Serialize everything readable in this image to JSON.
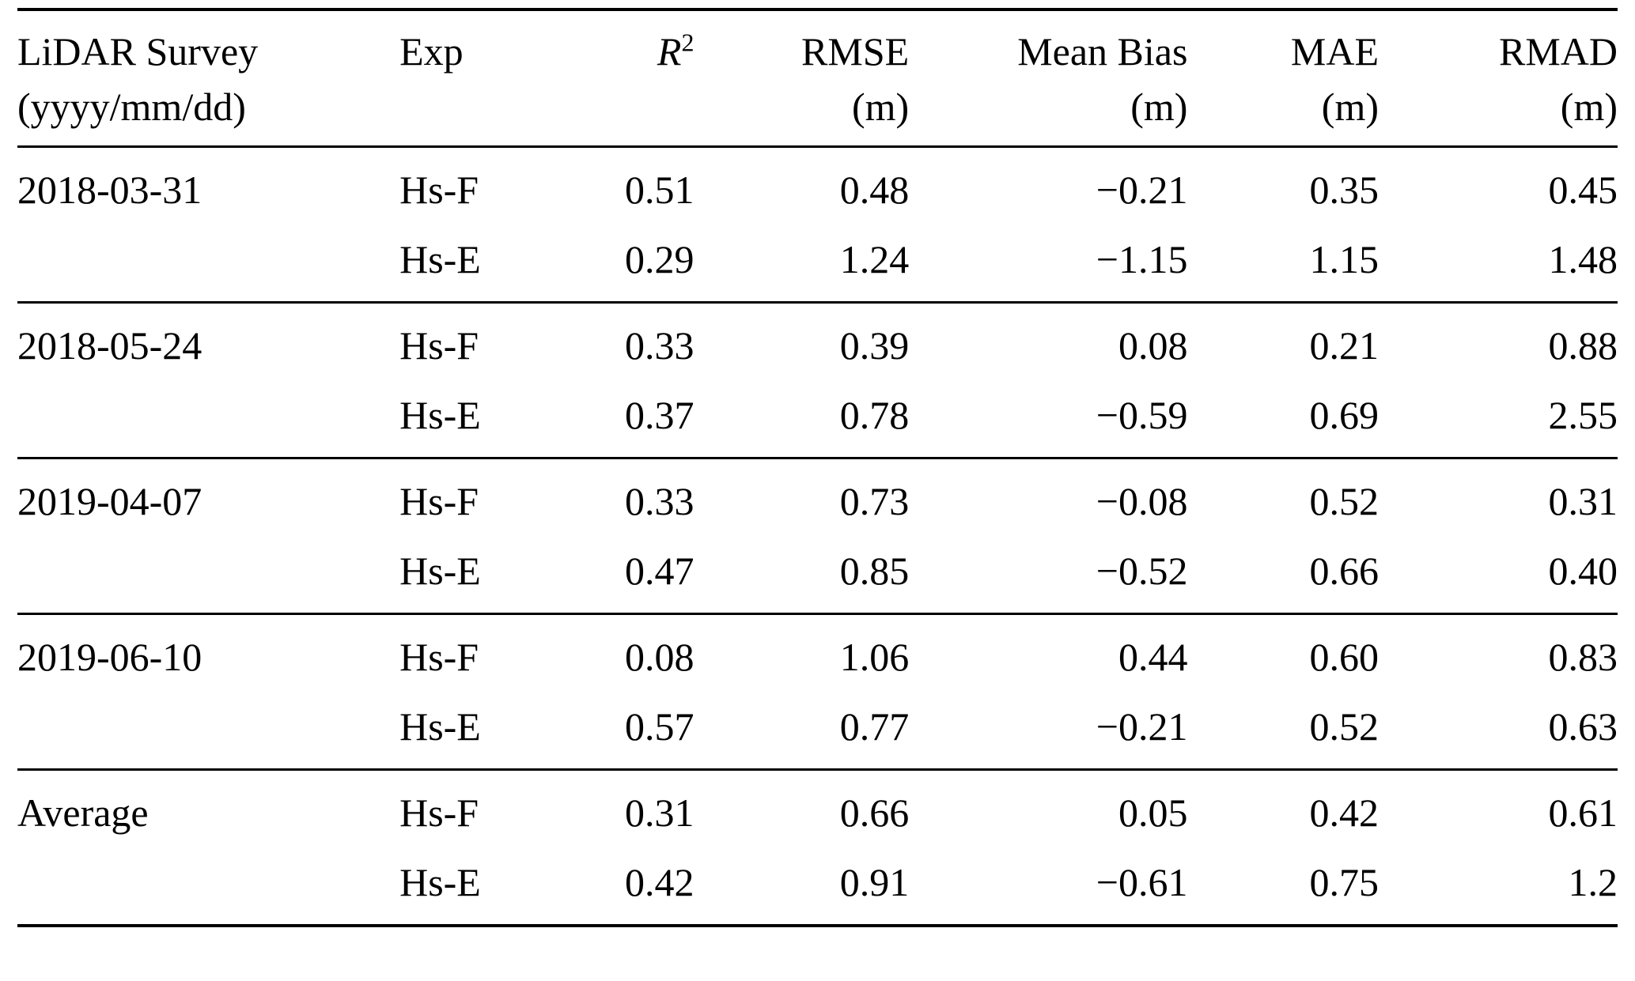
{
  "colors": {
    "background": "#ffffff",
    "text": "#000000",
    "rule": "#000000"
  },
  "table": {
    "headers": {
      "survey": {
        "line1": "LiDAR Survey",
        "line2": "(yyyy/mm/dd)"
      },
      "exp": "Exp",
      "r2": {
        "base": "R",
        "sup": "2"
      },
      "rmse": {
        "line1": "RMSE",
        "line2": "(m)"
      },
      "mean_bias": {
        "line1": "Mean Bias",
        "line2": "(m)"
      },
      "mae": {
        "line1": "MAE",
        "line2": "(m)"
      },
      "rmad": {
        "line1": "RMAD",
        "line2": "(m)"
      }
    },
    "groups": [
      {
        "label": "2018-03-31",
        "rows": [
          {
            "exp": "Hs-F",
            "r2": "0.51",
            "rmse": "0.48",
            "mean_bias": "−0.21",
            "mae": "0.35",
            "rmad": "0.45"
          },
          {
            "exp": "Hs-E",
            "r2": "0.29",
            "rmse": "1.24",
            "mean_bias": "−1.15",
            "mae": "1.15",
            "rmad": "1.48"
          }
        ]
      },
      {
        "label": "2018-05-24",
        "rows": [
          {
            "exp": "Hs-F",
            "r2": "0.33",
            "rmse": "0.39",
            "mean_bias": "0.08",
            "mae": "0.21",
            "rmad": "0.88"
          },
          {
            "exp": "Hs-E",
            "r2": "0.37",
            "rmse": "0.78",
            "mean_bias": "−0.59",
            "mae": "0.69",
            "rmad": "2.55"
          }
        ]
      },
      {
        "label": "2019-04-07",
        "rows": [
          {
            "exp": "Hs-F",
            "r2": "0.33",
            "rmse": "0.73",
            "mean_bias": "−0.08",
            "mae": "0.52",
            "rmad": "0.31"
          },
          {
            "exp": "Hs-E",
            "r2": "0.47",
            "rmse": "0.85",
            "mean_bias": "−0.52",
            "mae": "0.66",
            "rmad": "0.40"
          }
        ]
      },
      {
        "label": "2019-06-10",
        "rows": [
          {
            "exp": "Hs-F",
            "r2": "0.08",
            "rmse": "1.06",
            "mean_bias": "0.44",
            "mae": "0.60",
            "rmad": "0.83"
          },
          {
            "exp": "Hs-E",
            "r2": "0.57",
            "rmse": "0.77",
            "mean_bias": "−0.21",
            "mae": "0.52",
            "rmad": "0.63"
          }
        ]
      },
      {
        "label": "Average",
        "rows": [
          {
            "exp": "Hs-F",
            "r2": "0.31",
            "rmse": "0.66",
            "mean_bias": "0.05",
            "mae": "0.42",
            "rmad": "0.61"
          },
          {
            "exp": "Hs-E",
            "r2": "0.42",
            "rmse": "0.91",
            "mean_bias": "−0.61",
            "mae": "0.75",
            "rmad": "1.2"
          }
        ]
      }
    ]
  }
}
